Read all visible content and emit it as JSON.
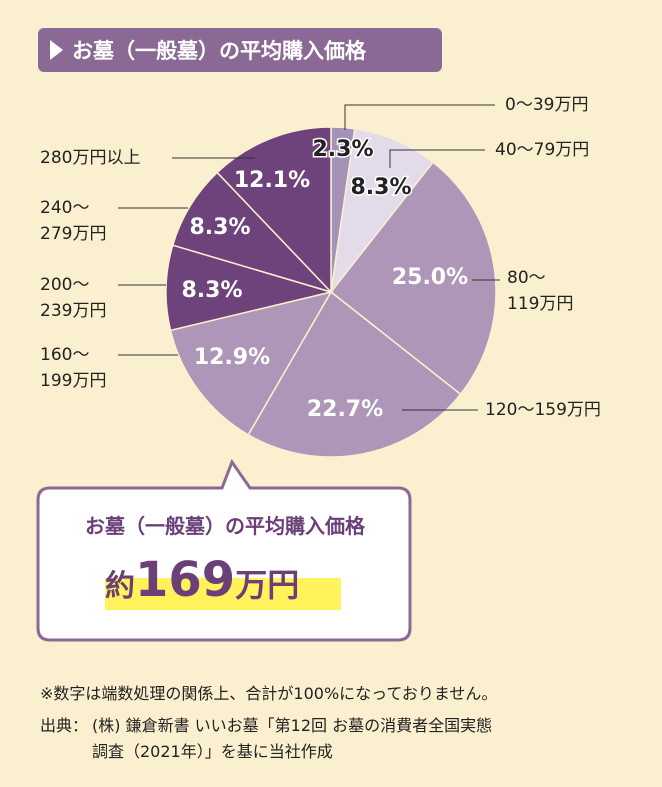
{
  "chart_data": {
    "type": "pie",
    "title": "お墓（一般墓）の平均購入価格",
    "categories": [
      "0〜39万円",
      "40〜79万円",
      "80〜\n119万円",
      "120〜159万円",
      "160〜\n199万円",
      "200〜\n239万円",
      "240〜\n279万円",
      "280万円以上"
    ],
    "values": [
      2.3,
      8.3,
      25.0,
      22.7,
      12.9,
      8.3,
      8.3,
      12.1
    ],
    "value_labels": [
      "2.3%",
      "8.3%",
      "25.0%",
      "22.7%",
      "12.9%",
      "8.3%",
      "8.3%",
      "12.1%"
    ],
    "colors": [
      "#a692b8",
      "#e4dbea",
      "#ad96b7",
      "#ad96b7",
      "#ad96b7",
      "#6e437c",
      "#6e437c",
      "#6e437c"
    ]
  },
  "callout": {
    "title": "お墓（一般墓）の平均購入価格",
    "prefix": "約",
    "amount": "169",
    "unit": "万円"
  },
  "notes": {
    "note": "※数字は端数処理の関係上、合計が100%になっておりません。",
    "source_label": "出典：",
    "source_lines": [
      "(株) 鎌倉新書 いいお墓「第12回 お墓の消費者全国実態",
      "調査（2021年）」を基に当社作成"
    ]
  }
}
